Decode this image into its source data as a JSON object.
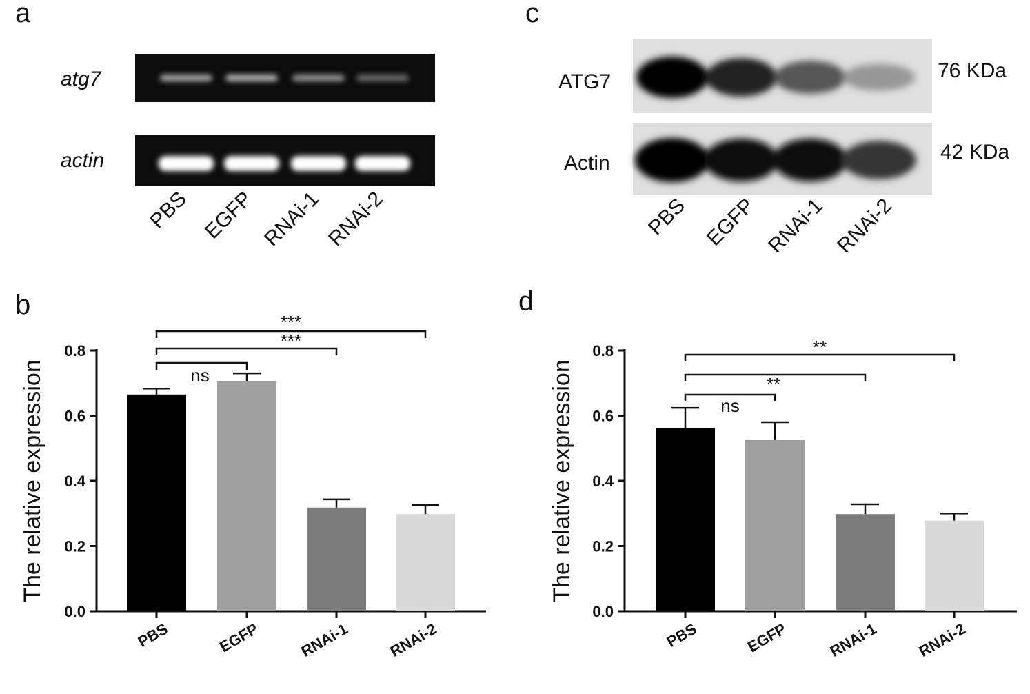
{
  "panel_letters": {
    "a": "a",
    "b": "b",
    "c": "c",
    "d": "d"
  },
  "gel": {
    "row1_label": "atg7",
    "row2_label": "actin",
    "lanes": [
      "PBS",
      "EGFP",
      "RNAi-1",
      "RNAi-2"
    ],
    "row1_intensity": [
      0.55,
      0.62,
      0.45,
      0.25
    ],
    "row2_intensity": [
      1.0,
      1.0,
      1.0,
      1.0
    ]
  },
  "western": {
    "row1_label": "ATG7",
    "row2_label": "Actin",
    "row1_kda": "76 KDa",
    "row2_kda": "42 KDa",
    "lanes": [
      "PBS",
      "EGFP",
      "RNAi-1",
      "RNAi-2"
    ],
    "row1_intensity": [
      1.0,
      0.85,
      0.6,
      0.3
    ],
    "row2_intensity": [
      1.0,
      0.95,
      0.95,
      0.75
    ]
  },
  "chart_data": [
    {
      "panel": "b",
      "type": "bar",
      "categories": [
        "PBS",
        "EGFP",
        "RNAi-1",
        "RNAi-2"
      ],
      "values": [
        0.665,
        0.705,
        0.318,
        0.298
      ],
      "errors": [
        0.018,
        0.025,
        0.025,
        0.028
      ],
      "colors": [
        "#000000",
        "#a0a0a0",
        "#7c7c7c",
        "#d9d9d9"
      ],
      "ylabel": "The relative expression",
      "ylim": [
        0,
        0.8
      ],
      "yticks": [
        "0.0",
        "0.2",
        "0.4",
        "0.6",
        "0.8"
      ],
      "significance": [
        {
          "from": 0,
          "to": 1,
          "label": "ns"
        },
        {
          "from": 0,
          "to": 2,
          "label": "***"
        },
        {
          "from": 0,
          "to": 3,
          "label": "***"
        }
      ]
    },
    {
      "panel": "d",
      "type": "bar",
      "categories": [
        "PBS",
        "EGFP",
        "RNAi-1",
        "RNAi-2"
      ],
      "values": [
        0.562,
        0.525,
        0.298,
        0.278
      ],
      "errors": [
        0.062,
        0.055,
        0.03,
        0.022
      ],
      "colors": [
        "#000000",
        "#a0a0a0",
        "#7c7c7c",
        "#d9d9d9"
      ],
      "ylabel": "The relative expression",
      "ylim": [
        0,
        0.8
      ],
      "yticks": [
        "0.0",
        "0.2",
        "0.4",
        "0.6",
        "0.8"
      ],
      "significance": [
        {
          "from": 0,
          "to": 1,
          "label": "ns"
        },
        {
          "from": 0,
          "to": 2,
          "label": "**"
        },
        {
          "from": 0,
          "to": 3,
          "label": "**"
        }
      ]
    }
  ]
}
